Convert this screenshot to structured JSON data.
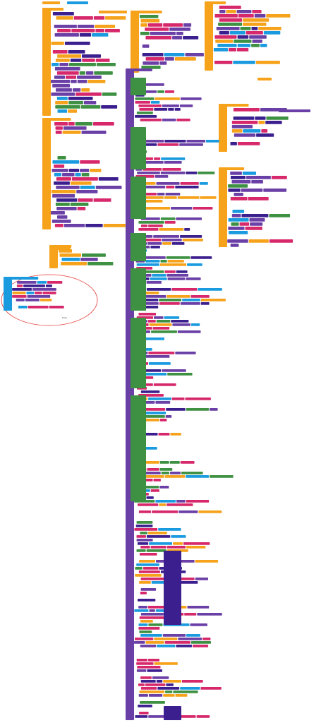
{
  "workspace": {
    "labels": [
      "false"
    ]
  }
}
